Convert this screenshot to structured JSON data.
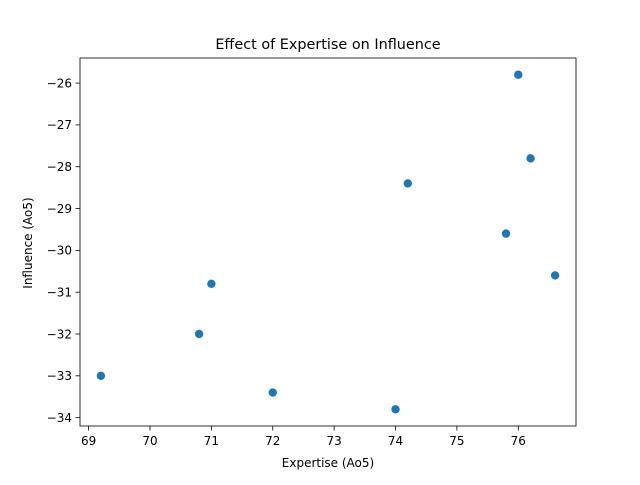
{
  "chart_data": {
    "type": "scatter",
    "title": "Effect of Expertise on Influence",
    "xlabel": "Expertise (Ao5)",
    "ylabel": "Influence (Ao5)",
    "xlim": [
      68.86,
      76.94
    ],
    "ylim": [
      -34.2,
      -25.4
    ],
    "xticks": [
      69,
      70,
      71,
      72,
      73,
      74,
      75,
      76
    ],
    "yticks": [
      -34,
      -33,
      -32,
      -31,
      -30,
      -29,
      -28,
      -27,
      -26
    ],
    "xtick_labels": [
      "69",
      "70",
      "71",
      "72",
      "73",
      "74",
      "75",
      "76"
    ],
    "ytick_labels": [
      "−34",
      "−33",
      "−32",
      "−31",
      "−30",
      "−29",
      "−28",
      "−27",
      "−26"
    ],
    "grid": false,
    "marker_color": "#1f77b4",
    "points": [
      {
        "x": 76.0,
        "y": -25.8
      },
      {
        "x": 76.2,
        "y": -27.8
      },
      {
        "x": 74.2,
        "y": -28.4
      },
      {
        "x": 75.8,
        "y": -29.6
      },
      {
        "x": 76.6,
        "y": -30.6
      },
      {
        "x": 71.0,
        "y": -30.8
      },
      {
        "x": 70.8,
        "y": -32.0
      },
      {
        "x": 69.2,
        "y": -33.0
      },
      {
        "x": 72.0,
        "y": -33.4
      },
      {
        "x": 74.0,
        "y": -33.8
      }
    ]
  }
}
